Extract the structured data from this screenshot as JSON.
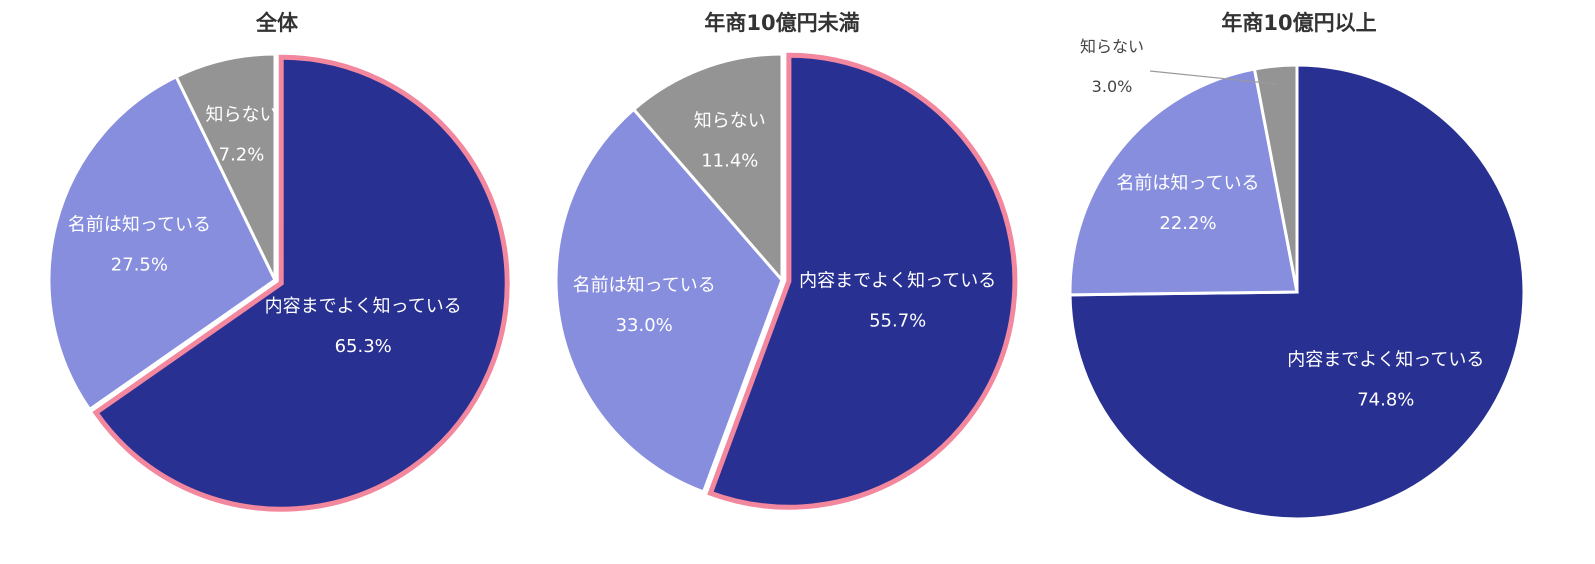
{
  "colors": {
    "dark": "#283092",
    "light": "#868EDD",
    "gray": "#949494",
    "highlight": "#F2879E",
    "divider": "#ffffff"
  },
  "chart_data": [
    {
      "type": "pie",
      "title": "全体",
      "slices": [
        {
          "label": "内容までよく知っている",
          "value": 65.3,
          "display": "65.3%",
          "color": "#283092"
        },
        {
          "label": "名前は知っている",
          "value": 27.5,
          "display": "27.5%",
          "color": "#868EDD"
        },
        {
          "label": "知らない",
          "value": 7.2,
          "display": "7.2%",
          "color": "#949494"
        }
      ],
      "highlighted_slice": "内容までよく知っている"
    },
    {
      "type": "pie",
      "title": "年商10億円未満",
      "slices": [
        {
          "label": "内容までよく知っている",
          "value": 55.7,
          "display": "55.7%",
          "color": "#283092"
        },
        {
          "label": "名前は知っている",
          "value": 33.0,
          "display": "33.0%",
          "color": "#868EDD"
        },
        {
          "label": "知らない",
          "value": 11.4,
          "display": "11.4%",
          "color": "#949494"
        }
      ],
      "highlighted_slice": "内容までよく知っている"
    },
    {
      "type": "pie",
      "title": "年商10億円以上",
      "slices": [
        {
          "label": "内容までよく知っている",
          "value": 74.8,
          "display": "74.8%",
          "color": "#283092"
        },
        {
          "label": "名前は知っている",
          "value": 22.2,
          "display": "22.2%",
          "color": "#868EDD"
        },
        {
          "label": "知らない",
          "value": 3.0,
          "display": "3.0%",
          "color": "#949494"
        }
      ],
      "highlighted_slice": null
    }
  ]
}
